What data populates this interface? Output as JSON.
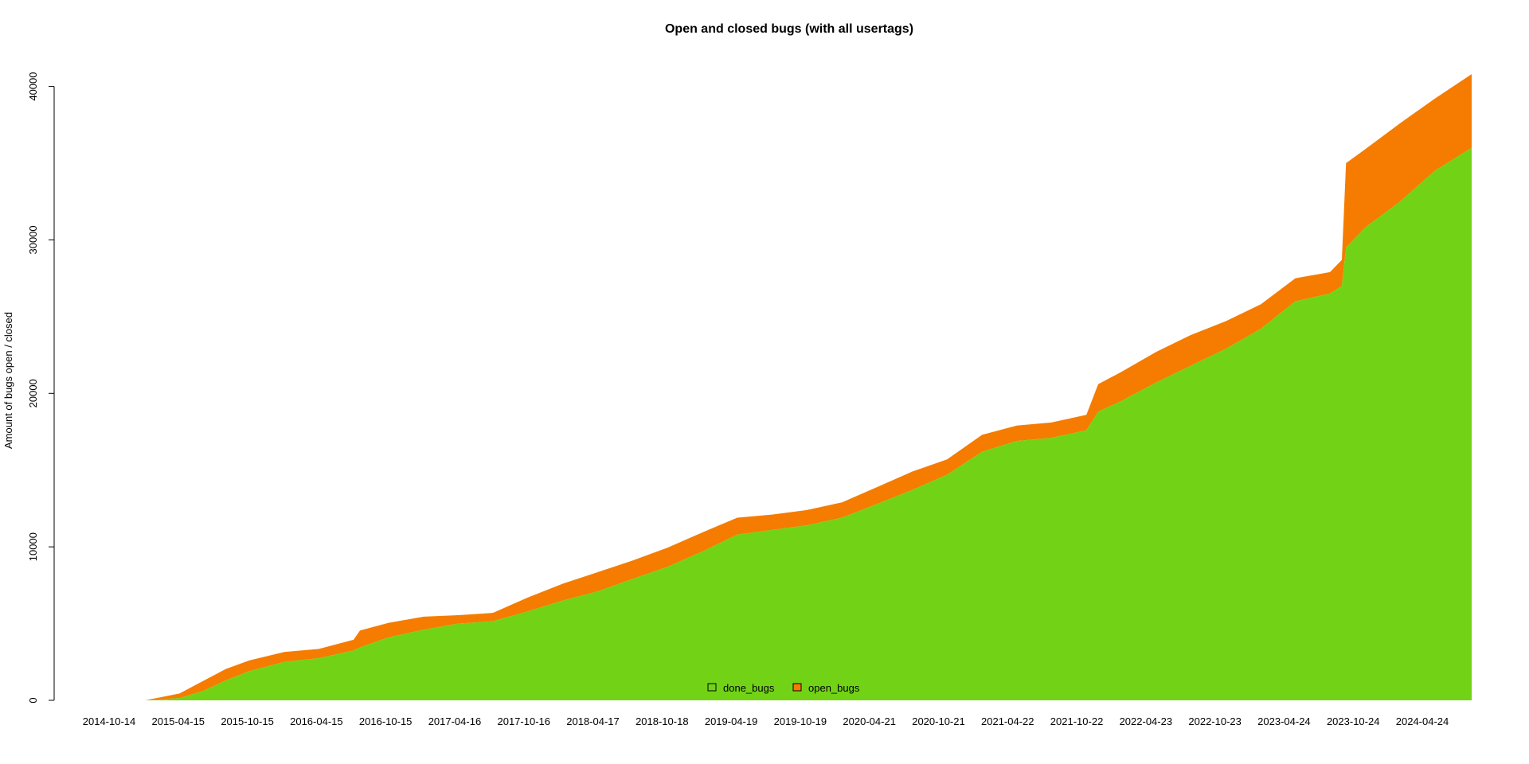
{
  "chart_data": {
    "type": "area",
    "title": "Open and closed bugs (with all usertags)",
    "xlabel": "",
    "ylabel": "Amount of bugs open / closed",
    "ylim": [
      0,
      42000
    ],
    "yticks": [
      0,
      10000,
      20000,
      30000,
      40000
    ],
    "xlim": [
      "2014-10-14",
      "2024-07-30"
    ],
    "xtick_labels": [
      "2014-10-14",
      "2015-04-15",
      "2015-10-15",
      "2016-04-15",
      "2016-10-15",
      "2017-04-16",
      "2017-10-16",
      "2018-04-17",
      "2018-10-18",
      "2019-04-19",
      "2019-10-19",
      "2020-04-21",
      "2020-10-21",
      "2021-04-22",
      "2021-10-22",
      "2022-04-23",
      "2022-10-23",
      "2023-04-24",
      "2023-10-24",
      "2024-04-24"
    ],
    "stacked": true,
    "grid": false,
    "legend": "bottom-center",
    "x": [
      "2014-10-14",
      "2015-01-14",
      "2015-02-14",
      "2015-04-15",
      "2015-06-15",
      "2015-08-15",
      "2015-10-15",
      "2016-01-15",
      "2016-04-15",
      "2016-07-15",
      "2016-08-01",
      "2016-10-15",
      "2017-01-15",
      "2017-04-16",
      "2017-07-16",
      "2017-10-16",
      "2018-01-16",
      "2018-04-17",
      "2018-07-17",
      "2018-10-18",
      "2019-01-18",
      "2019-04-19",
      "2019-07-19",
      "2019-10-19",
      "2020-01-19",
      "2020-04-21",
      "2020-07-21",
      "2020-10-21",
      "2021-01-21",
      "2021-04-22",
      "2021-07-22",
      "2021-10-22",
      "2021-11-22",
      "2022-01-22",
      "2022-04-23",
      "2022-07-23",
      "2022-10-23",
      "2023-01-23",
      "2023-04-24",
      "2023-07-24",
      "2023-08-24",
      "2023-09-04",
      "2023-10-24",
      "2024-01-24",
      "2024-04-24",
      "2024-07-30"
    ],
    "series": [
      {
        "name": "done_bugs",
        "color": "#72d316",
        "values": [
          0,
          0,
          50,
          150,
          600,
          1300,
          1900,
          2500,
          2750,
          3250,
          3450,
          4100,
          4600,
          5000,
          5150,
          5800,
          6500,
          7100,
          7900,
          8700,
          9700,
          10800,
          11100,
          11400,
          11900,
          12800,
          13700,
          14700,
          16200,
          16900,
          17100,
          17600,
          18800,
          19500,
          20700,
          21800,
          22900,
          24200,
          26000,
          26500,
          27000,
          29500,
          30800,
          32500,
          34500,
          36000
        ]
      },
      {
        "name": "open_bugs",
        "color": "#f57c00",
        "values": [
          0,
          0,
          100,
          300,
          650,
          750,
          700,
          650,
          600,
          700,
          1100,
          950,
          850,
          550,
          550,
          900,
          1100,
          1250,
          1200,
          1250,
          1250,
          1100,
          1000,
          1000,
          1000,
          1100,
          1200,
          1000,
          1100,
          1000,
          1000,
          1000,
          1800,
          1900,
          2000,
          2000,
          1800,
          1600,
          1500,
          1400,
          1700,
          5500,
          5100,
          5100,
          4700,
          4800
        ]
      }
    ]
  }
}
